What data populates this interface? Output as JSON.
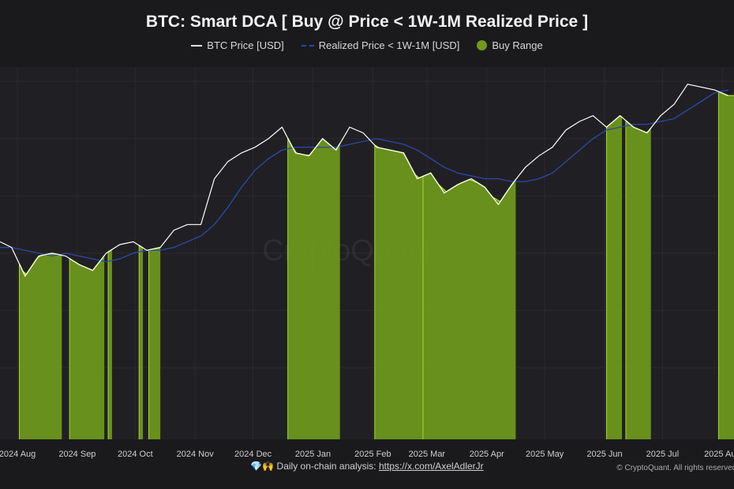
{
  "title": "BTC: Smart DCA [ Buy @ Price < 1W-1M Realized Price ]",
  "legend": {
    "btc": "BTC Price [USD]",
    "realized": "Realized Price < 1W-1M [USD]",
    "buy": "Buy Range"
  },
  "watermark": "CryptoQuant",
  "footer": {
    "icons": "💎🙌",
    "text": "Daily on-chain analysis: ",
    "link": "https://x.com/AxelAdlerJr",
    "copyright": "© CryptoQuant. All rights reserved."
  },
  "colors": {
    "background": "#1a1a1d",
    "plot": "#202024",
    "btc": "#ffffff",
    "realized": "#2c4aa8",
    "buy_fill": "#6f9a1c",
    "buy_edge": "#a6d62e"
  },
  "chart_data": {
    "type": "line",
    "title": "BTC: Smart DCA [ Buy @ Price < 1W-1M Realized Price ]",
    "xlim": [
      "2024-07-23",
      "2025-08-07"
    ],
    "ylim": [
      -5000,
      125000
    ],
    "grid": true,
    "legend_position": "top",
    "x_ticks": [
      {
        "date": "2024-08-01",
        "label": "2024 Aug"
      },
      {
        "date": "2024-09-01",
        "label": "2024 Sep"
      },
      {
        "date": "2024-10-01",
        "label": "2024 Oct"
      },
      {
        "date": "2024-11-01",
        "label": "2024 Nov"
      },
      {
        "date": "2024-12-01",
        "label": "2024 Dec"
      },
      {
        "date": "2025-01-01",
        "label": "2025 Jan"
      },
      {
        "date": "2025-02-01",
        "label": "2025 Feb"
      },
      {
        "date": "2025-03-01",
        "label": "2025 Mar"
      },
      {
        "date": "2025-04-01",
        "label": "2025 Apr"
      },
      {
        "date": "2025-05-01",
        "label": "2025 May"
      },
      {
        "date": "2025-06-01",
        "label": "2025 Jun"
      },
      {
        "date": "2025-07-01",
        "label": "2025 Jul"
      },
      {
        "date": "2025-08-01",
        "label": "2025 Aug"
      }
    ],
    "x": [
      "2024-07-23",
      "2024-07-29",
      "2024-08-05",
      "2024-08-12",
      "2024-08-19",
      "2024-08-26",
      "2024-09-02",
      "2024-09-09",
      "2024-09-16",
      "2024-09-23",
      "2024-09-30",
      "2024-10-07",
      "2024-10-14",
      "2024-10-21",
      "2024-10-28",
      "2024-11-04",
      "2024-11-11",
      "2024-11-18",
      "2024-11-25",
      "2024-12-02",
      "2024-12-09",
      "2024-12-16",
      "2024-12-23",
      "2024-12-30",
      "2025-01-06",
      "2025-01-13",
      "2025-01-20",
      "2025-01-27",
      "2025-02-03",
      "2025-02-10",
      "2025-02-17",
      "2025-02-24",
      "2025-03-03",
      "2025-03-10",
      "2025-03-17",
      "2025-03-24",
      "2025-03-31",
      "2025-04-07",
      "2025-04-14",
      "2025-04-21",
      "2025-04-28",
      "2025-05-05",
      "2025-05-12",
      "2025-05-19",
      "2025-05-26",
      "2025-06-02",
      "2025-06-09",
      "2025-06-16",
      "2025-06-23",
      "2025-06-30",
      "2025-07-07",
      "2025-07-14",
      "2025-07-21",
      "2025-07-28",
      "2025-08-04"
    ],
    "series": [
      {
        "name": "BTC Price [USD]",
        "values": [
          64000,
          62000,
          52000,
          59000,
          60000,
          59000,
          56000,
          54000,
          60000,
          63000,
          64000,
          61000,
          62000,
          68000,
          70000,
          70000,
          86000,
          92000,
          95000,
          97000,
          100000,
          104000,
          95000,
          94000,
          100000,
          96000,
          104000,
          102000,
          97000,
          96000,
          95000,
          86000,
          88000,
          81000,
          84000,
          86000,
          83000,
          77000,
          84000,
          90000,
          94000,
          97000,
          103000,
          106000,
          108000,
          104000,
          108000,
          104000,
          102000,
          108000,
          112000,
          119000,
          118000,
          117000,
          115000
        ]
      },
      {
        "name": "Realized Price < 1W-1M [USD]",
        "values": [
          62000,
          62000,
          61000,
          60000,
          59000,
          60000,
          59000,
          58000,
          57000,
          58000,
          60000,
          61000,
          61000,
          62000,
          64000,
          66000,
          70000,
          76000,
          83000,
          89000,
          93000,
          96000,
          97000,
          97000,
          97000,
          97000,
          98000,
          99000,
          100000,
          99000,
          98000,
          96000,
          93000,
          90000,
          88000,
          87000,
          86000,
          86000,
          85000,
          85000,
          86000,
          88000,
          92000,
          96000,
          100000,
          103000,
          104000,
          105000,
          105000,
          106000,
          107000,
          110000,
          113000,
          116000,
          117000
        ]
      }
    ],
    "buy_ranges": [
      [
        "2024-08-02",
        "2024-08-24"
      ],
      [
        "2024-08-28",
        "2024-09-15"
      ],
      [
        "2024-09-17",
        "2024-09-19"
      ],
      [
        "2024-10-03",
        "2024-10-05"
      ],
      [
        "2024-10-08",
        "2024-10-14"
      ],
      [
        "2024-12-19",
        "2025-01-15"
      ],
      [
        "2025-02-02",
        "2025-02-27"
      ],
      [
        "2025-02-27",
        "2025-04-16"
      ],
      [
        "2025-06-02",
        "2025-06-10"
      ],
      [
        "2025-06-12",
        "2025-06-25"
      ],
      [
        "2025-07-30",
        "2025-08-07"
      ]
    ]
  }
}
